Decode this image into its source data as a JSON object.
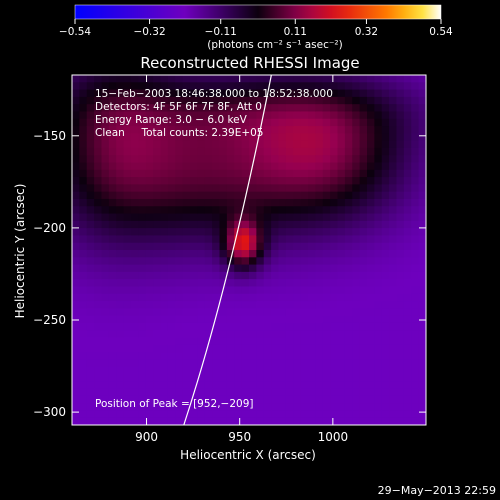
{
  "chart_data": {
    "type": "heatmap",
    "title": "Reconstructed RHESSI Image",
    "xlabel": "Heliocentric X (arcsec)",
    "ylabel": "Heliocentric Y (arcsec)",
    "xlim": [
      860,
      1050
    ],
    "ylim": [
      -307,
      -117
    ],
    "x_ticks": [
      900,
      950,
      1000
    ],
    "x_tick_labels": [
      "900",
      "950",
      "1000"
    ],
    "y_ticks": [
      -150,
      -200,
      -250,
      -300
    ],
    "y_tick_labels": [
      "−150",
      "−200",
      "−250",
      "−300"
    ],
    "colorbar": {
      "range": [
        -0.54,
        0.54
      ],
      "ticks": [
        -0.54,
        -0.32,
        -0.11,
        0.11,
        0.32,
        0.54
      ],
      "tick_labels": [
        "−0.54",
        "−0.32",
        "−0.11",
        "0.11",
        "0.32",
        "0.54"
      ],
      "units_label": "(photons cm⁻² s⁻¹ asec⁻²)"
    },
    "annotations": [
      "15−Feb−2003 18:46:38.000 to 18:52:38.000",
      "Detectors: 4F 5F 6F 7F 8F, Att 0",
      "Energy Range: 3.0 − 6.0 keV",
      "Clean     Total counts: 2.39E+05"
    ],
    "peak_label": "Position of Peak = [952,−209]",
    "peak": {
      "x": 952,
      "y": -209,
      "value": 0.54
    },
    "limb_line": {
      "points": [
        [
          920,
          -307
        ],
        [
          945,
          -230
        ],
        [
          967,
          -117
        ]
      ],
      "color": "#ffffff"
    },
    "sources": [
      {
        "x": 952,
        "y": -209,
        "sx": 7,
        "sy": 9,
        "value": 0.36
      },
      {
        "x": 935,
        "y": -170,
        "sx": 48,
        "sy": 28,
        "value": 0.26
      },
      {
        "x": 1000,
        "y": -160,
        "sx": 30,
        "sy": 25,
        "value": 0.22
      },
      {
        "x": 880,
        "y": -150,
        "sx": 25,
        "sy": 40,
        "value": 0.18
      },
      {
        "x": 960,
        "y": -135,
        "sx": 60,
        "sy": 15,
        "value": 0.14
      }
    ],
    "background_level": -0.22,
    "grid": false
  },
  "footer": {
    "timestamp": "29−May−2013 22:59"
  }
}
